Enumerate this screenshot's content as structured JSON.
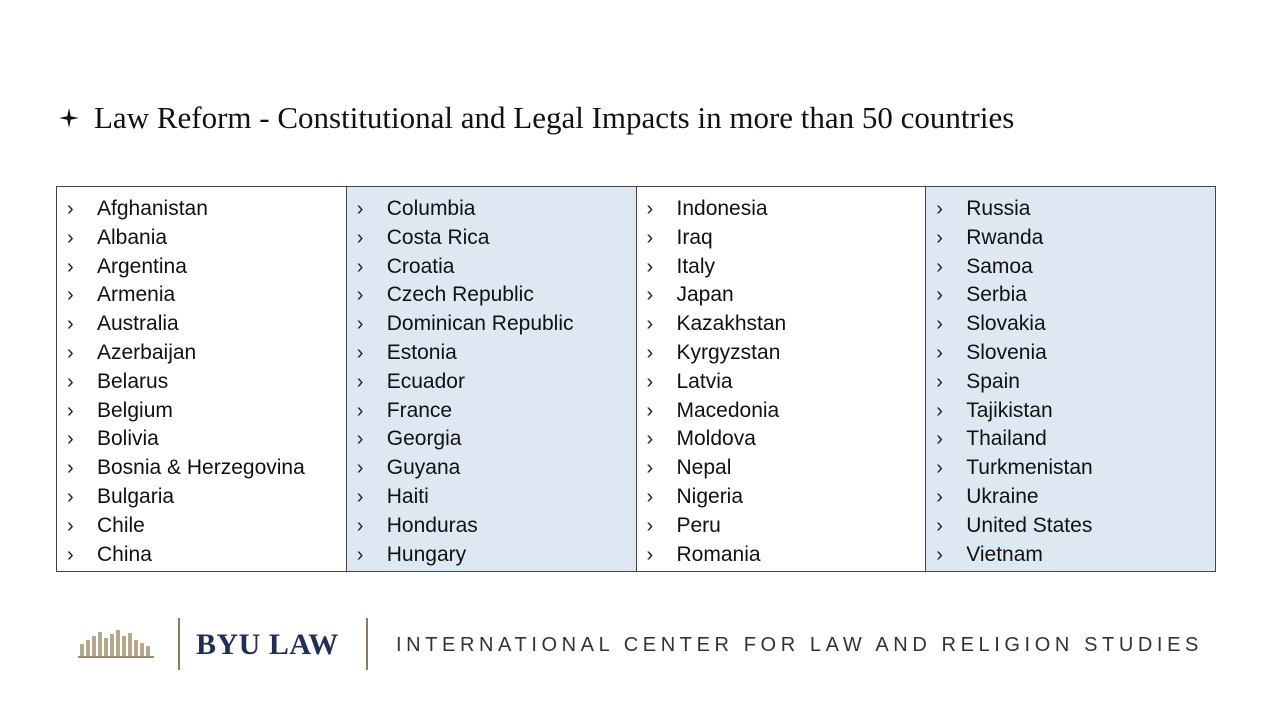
{
  "slide": {
    "title": "Law Reform - Constitutional and Legal Impacts in more than 50 countries",
    "bullet_icon": "four-point-star-icon",
    "columns": [
      {
        "shaded": false,
        "items": [
          "Afghanistan",
          "Albania",
          "Argentina",
          "Armenia",
          "Australia",
          "Azerbaijan",
          "Belarus",
          "Belgium",
          "Bolivia",
          "Bosnia & Herzegovina",
          "Bulgaria",
          "Chile",
          "China"
        ]
      },
      {
        "shaded": true,
        "items": [
          "Columbia",
          "Costa Rica",
          "Croatia",
          "Czech Republic",
          "Dominican Republic",
          "Estonia",
          "Ecuador",
          "France",
          "Georgia",
          "Guyana",
          "Haiti",
          "Honduras",
          "Hungary"
        ]
      },
      {
        "shaded": false,
        "items": [
          "Indonesia",
          "Iraq",
          "Italy",
          "Japan",
          "Kazakhstan",
          "Kyrgyzstan",
          "Latvia",
          "Macedonia",
          "Moldova",
          "Nepal",
          "Nigeria",
          "Peru",
          "Romania"
        ]
      },
      {
        "shaded": true,
        "items": [
          "Russia",
          "Rwanda",
          "Samoa",
          "Serbia",
          "Slovakia",
          "Slovenia",
          "Spain",
          "Tajikistan",
          "Thailand",
          "Turkmenistan",
          "Ukraine",
          "United States",
          "Vietnam"
        ]
      }
    ],
    "list_marker": "›"
  },
  "footer": {
    "logo_text": "BYU LAW",
    "center_name": "INTERNATIONAL CENTER FOR LAW AND RELIGION STUDIES",
    "books_icon": "books-icon"
  },
  "colors": {
    "shaded_column": "#dde8f3",
    "logo_navy": "#1f2f57",
    "accent_gold": "#8c7a5e"
  }
}
